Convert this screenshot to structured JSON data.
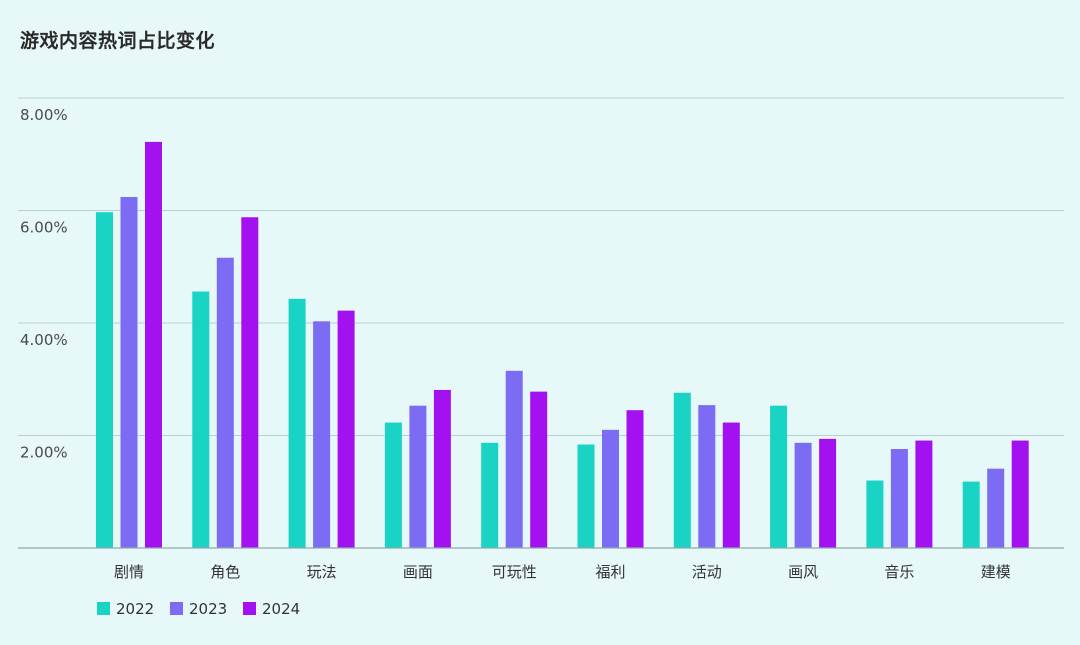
{
  "chart_data": {
    "type": "bar",
    "title": "游戏内容热词占比变化",
    "xlabel": "",
    "ylabel": "",
    "ylim": [
      0,
      8
    ],
    "yticks": [
      {
        "value": 2,
        "label": "2.00%"
      },
      {
        "value": 4,
        "label": "4.00%"
      },
      {
        "value": 6,
        "label": "6.00%"
      },
      {
        "value": 8,
        "label": "8.00%"
      }
    ],
    "grid": true,
    "legend_position": "bottom-left",
    "categories": [
      "剧情",
      "角色",
      "玩法",
      "画面",
      "可玩性",
      "福利",
      "活动",
      "画风",
      "音乐",
      "建模"
    ],
    "series": [
      {
        "name": "2022",
        "color": "#19d4c4",
        "values": [
          5.97,
          4.56,
          4.43,
          2.23,
          1.87,
          1.84,
          2.76,
          2.53,
          1.2,
          1.18
        ]
      },
      {
        "name": "2023",
        "color": "#7b6cf3",
        "values": [
          6.24,
          5.16,
          4.03,
          2.53,
          3.15,
          2.1,
          2.54,
          1.87,
          1.76,
          1.41
        ]
      },
      {
        "name": "2024",
        "color": "#a311f0",
        "values": [
          7.22,
          5.88,
          4.22,
          2.81,
          2.78,
          2.45,
          2.23,
          1.94,
          1.91,
          1.91
        ]
      }
    ]
  }
}
